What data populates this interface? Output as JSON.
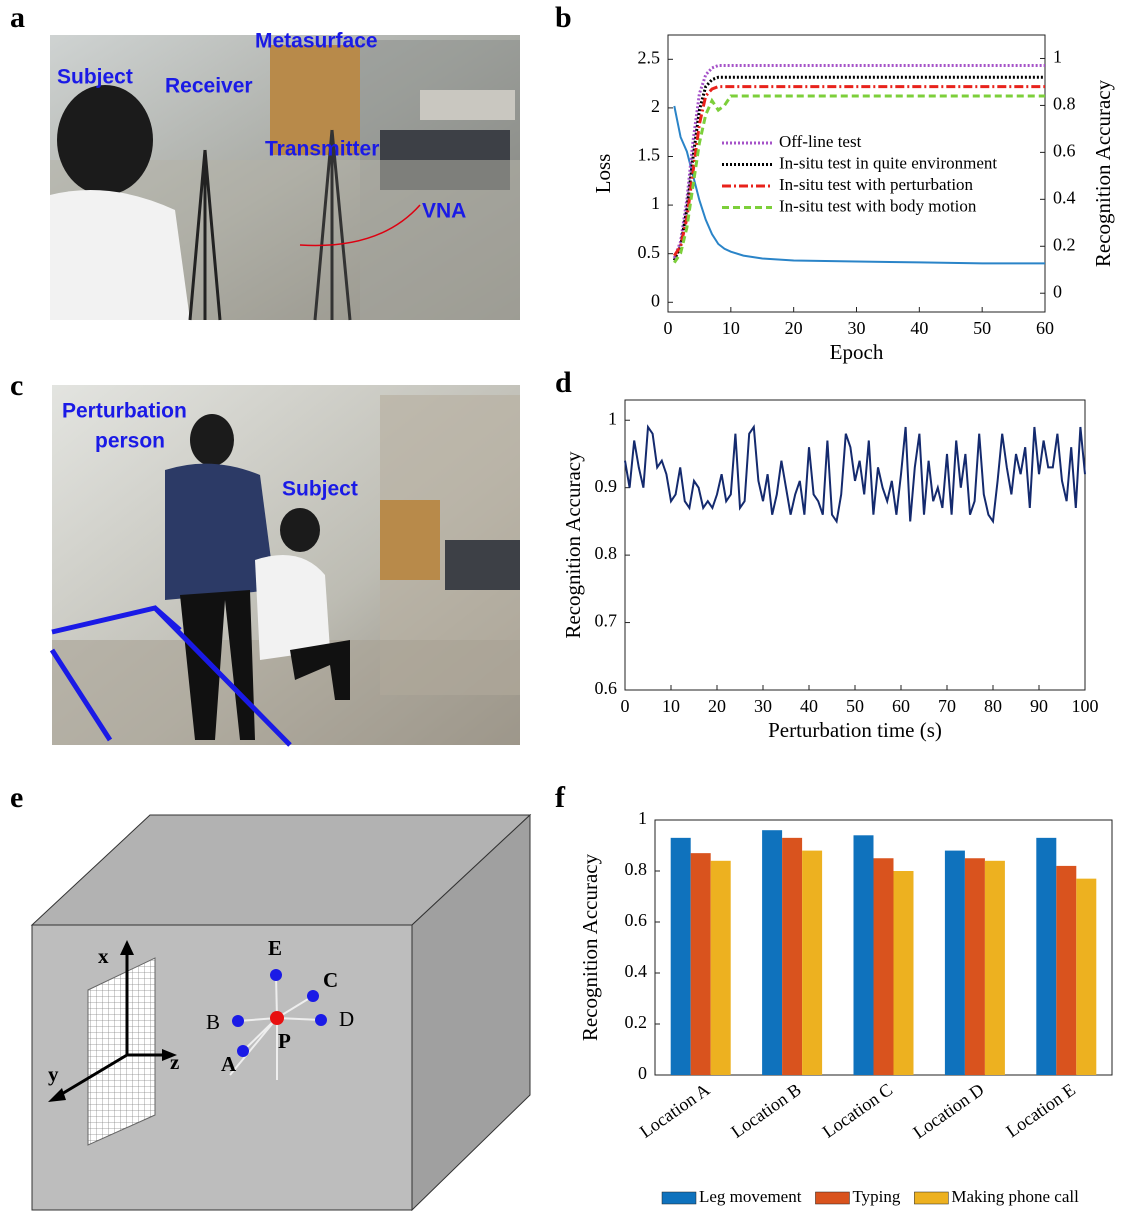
{
  "panel_letters": [
    "a",
    "b",
    "c",
    "d",
    "e",
    "f"
  ],
  "photo_a": {
    "labels": [
      "Metasurface",
      "Subject",
      "Receiver",
      "Transmitter",
      "VNA"
    ]
  },
  "photo_c": {
    "labels": [
      "Perturbation",
      "person",
      "Subject"
    ]
  },
  "diagram_e": {
    "axes": [
      "x",
      "y",
      "z"
    ],
    "points": [
      "E",
      "C",
      "B",
      "D",
      "A",
      "P"
    ]
  },
  "chart_data": [
    {
      "type": "line",
      "xlabel": "Epoch",
      "ylabel": "Loss",
      "y2label": "Recognition Accuracy",
      "x": [
        1,
        2,
        3,
        4,
        5,
        6,
        7,
        8,
        9,
        10,
        12,
        15,
        20,
        30,
        40,
        50,
        60
      ],
      "xlim": [
        0,
        60
      ],
      "xticks": [
        0,
        10,
        20,
        30,
        40,
        50,
        60
      ],
      "ylim": [
        -0.1,
        2.75
      ],
      "yticks": [
        0,
        0.5,
        1,
        1.5,
        2,
        2.5
      ],
      "y2lim": [
        -0.08,
        1.1
      ],
      "y2ticks": [
        0,
        0.2,
        0.4,
        0.6,
        0.8,
        1
      ],
      "legend": "center",
      "series": [
        {
          "color": "#2a84c8",
          "dash": "solid",
          "values": [
            2.02,
            1.7,
            1.55,
            1.3,
            1.05,
            0.85,
            0.7,
            0.6,
            0.55,
            0.52,
            0.48,
            0.45,
            0.43,
            0.42,
            0.41,
            0.4,
            0.4
          ]
        },
        {
          "name": "Off-line test",
          "axis": "y2",
          "color": "#a552c8",
          "dash": "dotted",
          "values": [
            0.15,
            0.22,
            0.4,
            0.65,
            0.85,
            0.93,
            0.96,
            0.97,
            0.97,
            0.97,
            0.97,
            0.97,
            0.97,
            0.97,
            0.97,
            0.97,
            0.97
          ]
        },
        {
          "name": "In-situ test in quite environment",
          "axis": "y2",
          "color": "#000000",
          "dash": "dotted",
          "values": [
            0.14,
            0.2,
            0.36,
            0.58,
            0.78,
            0.88,
            0.91,
            0.92,
            0.92,
            0.92,
            0.92,
            0.92,
            0.92,
            0.92,
            0.92,
            0.92,
            0.92
          ]
        },
        {
          "name": "In-situ test with perturbation",
          "axis": "y2",
          "color": "#e8221b",
          "dash": "dashdot",
          "values": [
            0.16,
            0.2,
            0.32,
            0.52,
            0.72,
            0.84,
            0.87,
            0.88,
            0.88,
            0.88,
            0.88,
            0.88,
            0.88,
            0.88,
            0.88,
            0.88,
            0.88
          ]
        },
        {
          "name": "In-situ test with body motion",
          "axis": "y2",
          "color": "#7ccf3a",
          "dash": "dashed",
          "values": [
            0.13,
            0.17,
            0.28,
            0.46,
            0.64,
            0.76,
            0.82,
            0.78,
            0.8,
            0.84,
            0.84,
            0.84,
            0.84,
            0.84,
            0.84,
            0.84,
            0.84
          ]
        }
      ]
    },
    {
      "type": "line",
      "xlabel": "Perturbation time (s)",
      "ylabel": "Recognition Accuracy",
      "x": [
        0,
        1,
        2,
        3,
        4,
        5,
        6,
        7,
        8,
        9,
        10,
        11,
        12,
        13,
        14,
        15,
        16,
        17,
        18,
        19,
        20,
        21,
        22,
        23,
        24,
        25,
        26,
        27,
        28,
        29,
        30,
        31,
        32,
        33,
        34,
        35,
        36,
        37,
        38,
        39,
        40,
        41,
        42,
        43,
        44,
        45,
        46,
        47,
        48,
        49,
        50,
        51,
        52,
        53,
        54,
        55,
        56,
        57,
        58,
        59,
        60,
        61,
        62,
        63,
        64,
        65,
        66,
        67,
        68,
        69,
        70,
        71,
        72,
        73,
        74,
        75,
        76,
        77,
        78,
        79,
        80,
        81,
        82,
        83,
        84,
        85,
        86,
        87,
        88,
        89,
        90,
        91,
        92,
        93,
        94,
        95,
        96,
        97,
        98,
        99,
        100
      ],
      "xlim": [
        0,
        100
      ],
      "xticks": [
        0,
        10,
        20,
        30,
        40,
        50,
        60,
        70,
        80,
        90,
        100
      ],
      "ylim": [
        0.6,
        1.03
      ],
      "yticks": [
        0.6,
        0.7,
        0.8,
        0.9,
        1
      ],
      "series": [
        {
          "color": "#142a6e",
          "dash": "solid",
          "values": [
            0.94,
            0.9,
            0.97,
            0.93,
            0.9,
            0.99,
            0.98,
            0.93,
            0.94,
            0.92,
            0.88,
            0.89,
            0.93,
            0.88,
            0.87,
            0.91,
            0.9,
            0.87,
            0.88,
            0.87,
            0.89,
            0.92,
            0.88,
            0.89,
            0.98,
            0.87,
            0.88,
            0.98,
            0.99,
            0.91,
            0.88,
            0.92,
            0.86,
            0.89,
            0.94,
            0.9,
            0.86,
            0.89,
            0.91,
            0.86,
            0.96,
            0.89,
            0.88,
            0.86,
            0.97,
            0.86,
            0.85,
            0.89,
            0.98,
            0.96,
            0.91,
            0.94,
            0.89,
            0.97,
            0.86,
            0.93,
            0.9,
            0.88,
            0.91,
            0.86,
            0.92,
            0.99,
            0.85,
            0.93,
            0.98,
            0.86,
            0.94,
            0.88,
            0.9,
            0.87,
            0.95,
            0.86,
            0.97,
            0.9,
            0.95,
            0.86,
            0.88,
            0.98,
            0.89,
            0.86,
            0.85,
            0.91,
            0.98,
            0.93,
            0.89,
            0.95,
            0.92,
            0.96,
            0.87,
            0.99,
            0.92,
            0.97,
            0.93,
            0.93,
            0.98,
            0.91,
            0.88,
            0.96,
            0.87,
            0.99,
            0.92
          ]
        }
      ]
    },
    {
      "type": "bar",
      "ylabel": "Recognition Accuracy",
      "categories": [
        "Location A",
        "Location B",
        "Location C",
        "Location D",
        "Location E"
      ],
      "ylim": [
        0,
        1
      ],
      "yticks": [
        0,
        0.2,
        0.4,
        0.6,
        0.8,
        1
      ],
      "legend": "bottom",
      "series": [
        {
          "name": "Leg movement",
          "color": "#0f72bd",
          "values": [
            0.93,
            0.96,
            0.94,
            0.88,
            0.93
          ]
        },
        {
          "name": "Typing",
          "color": "#d9531e",
          "values": [
            0.87,
            0.93,
            0.85,
            0.85,
            0.82
          ]
        },
        {
          "name": "Making phone call",
          "color": "#edb120",
          "values": [
            0.84,
            0.88,
            0.8,
            0.84,
            0.77
          ]
        }
      ]
    }
  ]
}
